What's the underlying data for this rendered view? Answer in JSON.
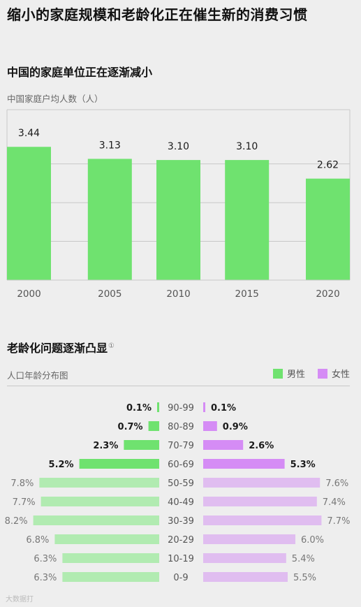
{
  "title": "缩小的家庭规模和老龄化正在催生新的消费习惯",
  "section1": {
    "title": "中国的家庭单位正在逐渐减小",
    "subtitle": "中国家庭户均人数（人）"
  },
  "section2": {
    "title": "老龄化问题逐渐凸显",
    "footnote_mark": "①",
    "subtitle": "人口年龄分布图",
    "legend": {
      "male": "男性",
      "female": "女性"
    }
  },
  "colors": {
    "bar_green": "#6fe26f",
    "male_strong": "#6fe26f",
    "male_light": "#b1ebb1",
    "female_strong": "#d58cf5",
    "female_light": "#e0bdf0",
    "background": "#eeeeee"
  },
  "watermark": "大数据打",
  "chart_data": [
    {
      "type": "bar",
      "title": "中国家庭户均人数（人）",
      "categories": [
        "2000",
        "2005",
        "2010",
        "2015",
        "2020"
      ],
      "values": [
        3.44,
        3.13,
        3.1,
        3.1,
        2.62
      ],
      "value_labels": [
        "3.44",
        "3.13",
        "3.10",
        "3.10",
        "2.62"
      ],
      "ylim": [
        0,
        4.4
      ],
      "grid": true
    },
    {
      "type": "bar",
      "orientation": "horizontal-population-pyramid",
      "title": "人口年龄分布图",
      "categories": [
        "90-99",
        "80-89",
        "70-79",
        "60-69",
        "50-59",
        "40-49",
        "30-39",
        "20-29",
        "10-19",
        "0-9"
      ],
      "series": [
        {
          "name": "男性",
          "values": [
            0.1,
            0.7,
            2.3,
            5.2,
            7.8,
            7.7,
            8.2,
            6.8,
            6.3,
            6.3
          ],
          "labels": [
            "0.1%",
            "0.7%",
            "2.3%",
            "5.2%",
            "7.8%",
            "7.7%",
            "8.2%",
            "6.8%",
            "6.3%",
            "6.3%"
          ]
        },
        {
          "name": "女性",
          "values": [
            0.1,
            0.9,
            2.6,
            5.3,
            7.6,
            7.4,
            7.7,
            6.0,
            5.4,
            5.5
          ],
          "labels": [
            "0.1%",
            "0.9%",
            "2.6%",
            "5.3%",
            "7.6%",
            "7.4%",
            "7.7%",
            "6.0%",
            "5.4%",
            "5.5%"
          ]
        }
      ],
      "highlight_ages": [
        "90-99",
        "80-89",
        "70-79",
        "60-69"
      ]
    }
  ]
}
